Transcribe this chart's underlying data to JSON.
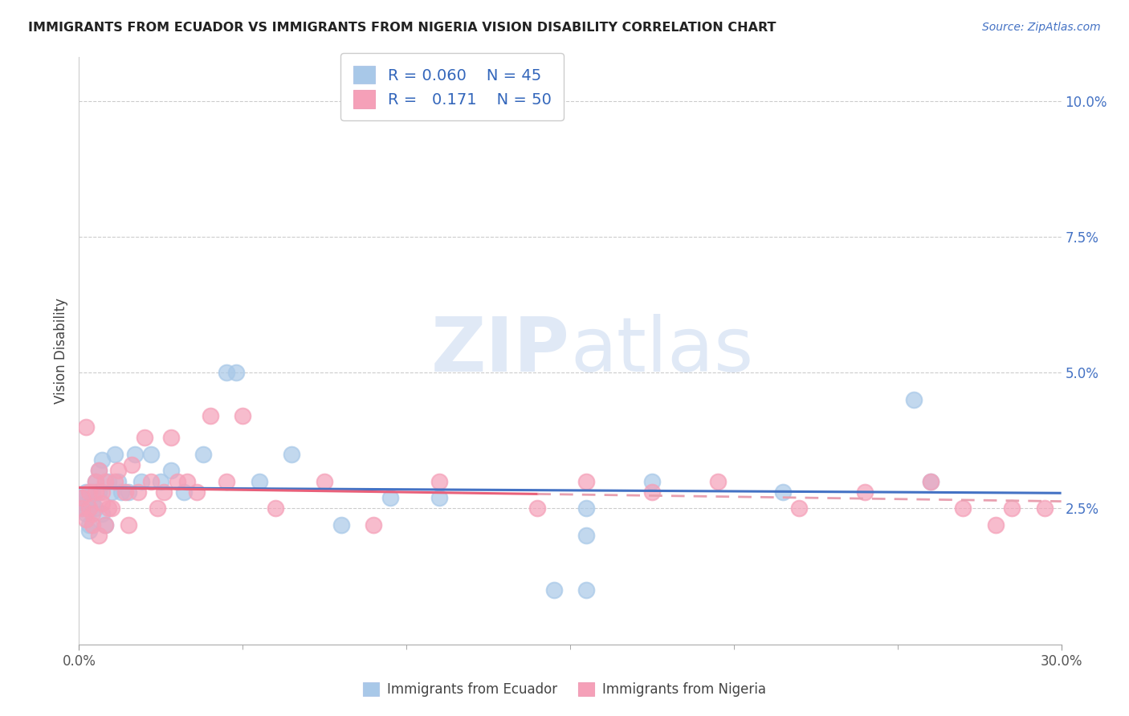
{
  "title": "IMMIGRANTS FROM ECUADOR VS IMMIGRANTS FROM NIGERIA VISION DISABILITY CORRELATION CHART",
  "source": "Source: ZipAtlas.com",
  "ylabel": "Vision Disability",
  "xlim": [
    0.0,
    0.3
  ],
  "ylim": [
    0.0,
    0.108
  ],
  "xticks": [
    0.0,
    0.3
  ],
  "xtick_labels": [
    "0.0%",
    "30.0%"
  ],
  "yticks": [
    0.025,
    0.05,
    0.075,
    0.1
  ],
  "ytick_labels": [
    "2.5%",
    "5.0%",
    "7.5%",
    "10.0%"
  ],
  "ecuador_color": "#a8c8e8",
  "nigeria_color": "#f5a0b8",
  "ecuador_edge_color": "#a8c8e8",
  "nigeria_edge_color": "#f5a0b8",
  "ecuador_line_color": "#4472c4",
  "nigeria_line_color_solid": "#e8607a",
  "nigeria_line_color_dashed": "#e8a0b0",
  "ecuador_R": 0.06,
  "ecuador_N": 45,
  "nigeria_R": 0.171,
  "nigeria_N": 50,
  "watermark_zip": "ZIP",
  "watermark_atlas": "atlas",
  "legend_ecuador": "Immigrants from Ecuador",
  "legend_nigeria": "Immigrants from Nigeria",
  "ecuador_x": [
    0.001,
    0.001,
    0.002,
    0.002,
    0.002,
    0.003,
    0.003,
    0.003,
    0.004,
    0.004,
    0.005,
    0.005,
    0.006,
    0.006,
    0.007,
    0.007,
    0.008,
    0.009,
    0.01,
    0.011,
    0.012,
    0.013,
    0.015,
    0.017,
    0.019,
    0.022,
    0.025,
    0.028,
    0.032,
    0.038,
    0.045,
    0.048,
    0.055,
    0.065,
    0.08,
    0.095,
    0.11,
    0.145,
    0.155,
    0.175,
    0.155,
    0.215,
    0.255,
    0.155,
    0.26
  ],
  "ecuador_y": [
    0.027,
    0.025,
    0.026,
    0.024,
    0.028,
    0.025,
    0.022,
    0.021,
    0.028,
    0.026,
    0.025,
    0.03,
    0.032,
    0.028,
    0.034,
    0.024,
    0.022,
    0.03,
    0.028,
    0.035,
    0.03,
    0.028,
    0.028,
    0.035,
    0.03,
    0.035,
    0.03,
    0.032,
    0.028,
    0.035,
    0.05,
    0.05,
    0.03,
    0.035,
    0.022,
    0.027,
    0.027,
    0.01,
    0.01,
    0.03,
    0.02,
    0.028,
    0.045,
    0.025,
    0.03
  ],
  "nigeria_x": [
    0.001,
    0.001,
    0.002,
    0.002,
    0.003,
    0.003,
    0.004,
    0.004,
    0.005,
    0.005,
    0.006,
    0.006,
    0.007,
    0.007,
    0.008,
    0.008,
    0.009,
    0.01,
    0.011,
    0.012,
    0.014,
    0.015,
    0.016,
    0.018,
    0.02,
    0.022,
    0.024,
    0.026,
    0.028,
    0.03,
    0.033,
    0.036,
    0.04,
    0.045,
    0.05,
    0.06,
    0.075,
    0.09,
    0.11,
    0.14,
    0.155,
    0.175,
    0.195,
    0.22,
    0.24,
    0.26,
    0.27,
    0.28,
    0.285,
    0.295
  ],
  "nigeria_y": [
    0.027,
    0.025,
    0.04,
    0.023,
    0.028,
    0.025,
    0.022,
    0.024,
    0.028,
    0.03,
    0.02,
    0.032,
    0.026,
    0.028,
    0.022,
    0.03,
    0.025,
    0.025,
    0.03,
    0.032,
    0.028,
    0.022,
    0.033,
    0.028,
    0.038,
    0.03,
    0.025,
    0.028,
    0.038,
    0.03,
    0.03,
    0.028,
    0.042,
    0.03,
    0.042,
    0.025,
    0.03,
    0.022,
    0.03,
    0.025,
    0.03,
    0.028,
    0.03,
    0.025,
    0.028,
    0.03,
    0.025,
    0.022,
    0.025,
    0.025
  ]
}
